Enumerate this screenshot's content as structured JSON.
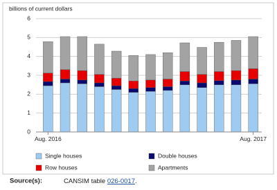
{
  "chart_data": {
    "type": "stacked_bar",
    "title": "billions of current dollars",
    "categories": [
      "Aug. 2016",
      null,
      null,
      null,
      null,
      null,
      null,
      null,
      null,
      null,
      null,
      null,
      "Aug. 2017"
    ],
    "series": [
      {
        "name": "Single houses",
        "color": "#9fcbf0",
        "values": [
          2.45,
          2.6,
          2.55,
          2.4,
          2.25,
          2.1,
          2.15,
          2.2,
          2.5,
          2.35,
          2.5,
          2.5,
          2.55
        ]
      },
      {
        "name": "Double houses",
        "color": "#0a0a6e",
        "values": [
          0.22,
          0.2,
          0.2,
          0.2,
          0.2,
          0.2,
          0.2,
          0.2,
          0.2,
          0.25,
          0.22,
          0.25,
          0.25
        ]
      },
      {
        "name": "Row houses",
        "color": "#e60000",
        "values": [
          0.45,
          0.5,
          0.5,
          0.45,
          0.4,
          0.4,
          0.4,
          0.4,
          0.5,
          0.45,
          0.48,
          0.5,
          0.55
        ]
      },
      {
        "name": "Apartments",
        "color": "#a3a3a3",
        "values": [
          1.66,
          1.75,
          1.8,
          1.6,
          1.43,
          1.35,
          1.35,
          1.4,
          1.52,
          1.43,
          1.55,
          1.6,
          1.7
        ]
      }
    ],
    "ylim": [
      0,
      6
    ],
    "yticks": [
      0,
      1,
      2,
      3,
      4,
      5,
      6
    ],
    "grid": true,
    "source": {
      "label": "Source(s):",
      "text": "CANSIM table ",
      "link": "026-0017",
      "end": "."
    }
  }
}
